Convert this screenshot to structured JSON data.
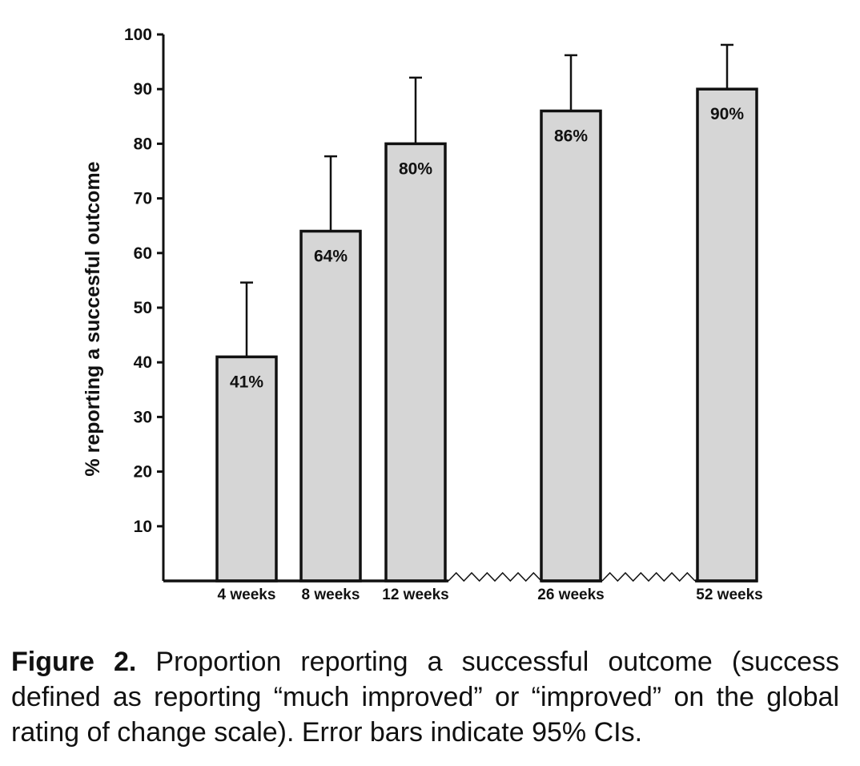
{
  "chart_data": {
    "type": "bar",
    "categories": [
      "4 weeks",
      "8 weeks",
      "12 weeks",
      "26 weeks",
      "52 weeks"
    ],
    "values": [
      41,
      64,
      80,
      86,
      90
    ],
    "value_labels": [
      "41%",
      "64%",
      "80%",
      "86%",
      "90%"
    ],
    "error_upper": [
      54.6,
      77.7,
      92.1,
      96.2,
      98.1
    ],
    "title": "",
    "xlabel": "",
    "ylabel": "% reporting a succesful outcome",
    "ylim": [
      0,
      100
    ],
    "yticks": [
      10,
      20,
      30,
      40,
      50,
      60,
      70,
      80,
      90,
      100
    ],
    "grid": false,
    "bar_color": "#d6d6d6",
    "axis_breaks": [
      "12 weeks",
      "26 weeks"
    ]
  },
  "caption": {
    "label": "Figure 2.",
    "text": " Proportion reporting a successful outcome (success defined as reporting “much improved” or “improved” on the global rating of change scale). Error bars indicate 95% CIs."
  }
}
